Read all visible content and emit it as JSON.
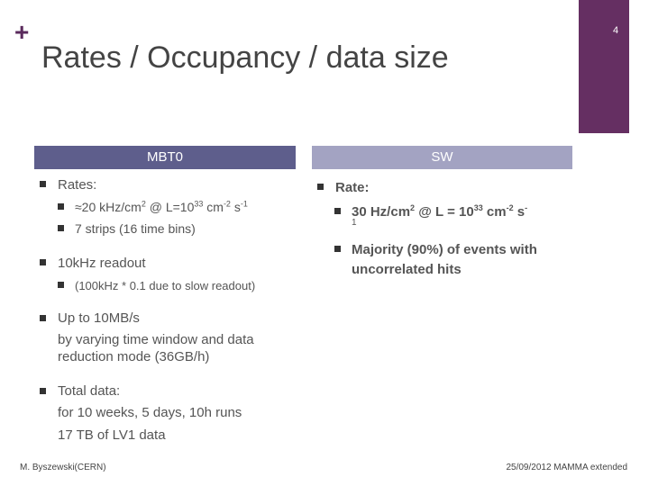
{
  "slide": {
    "title": "Rates / Occupancy / data size",
    "page_number": "4",
    "plus_mark": "+"
  },
  "left": {
    "header": "MBT0",
    "rates_label": "Rates:",
    "rate1_prefix": "≈20 kHz/cm",
    "rate1_sup1": "2",
    "rate1_mid": " @ L=10",
    "rate1_sup2": "33",
    "rate1_unit": " cm",
    "rate1_sup3": "-2",
    "rate1_s": " s",
    "rate1_sup4": "-1",
    "rate2": "7 strips (16 time bins)",
    "readout": "10kHz readout",
    "readout_note": "(100kHz * 0.1  due to slow readout)",
    "upto_line1": "Up to 10MB/s",
    "upto_line2": "by varying time window and data",
    "upto_line3": "reduction mode (36GB/h)",
    "total_line1": "Total data:",
    "total_line2": "for 10 weeks, 5 days, 10h runs",
    "total_line3": "17 TB of LV1 data"
  },
  "right": {
    "header": "SW",
    "rate_label": "Rate:",
    "r1_prefix": "30 Hz/cm",
    "r1_sup1": "2",
    "r1_mid": " @ L = 10",
    "r1_sup2": "33",
    "r1_unit": " cm",
    "r1_sup3": "-2",
    "r1_s": " s",
    "r1_sup4": "-",
    "r1_wrap": "1",
    "majority_line1": "Majority (90%) of events with",
    "majority_line2": "uncorrelated hits"
  },
  "footer": {
    "author": "M. Byszewski(CERN)",
    "event": "25/09/2012 MAMMA extended"
  }
}
